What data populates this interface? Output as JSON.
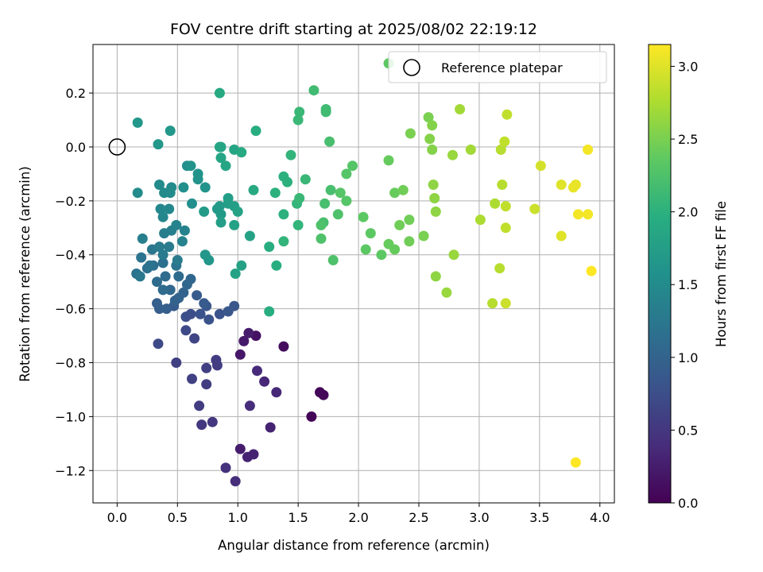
{
  "chart_data": {
    "type": "scatter",
    "title": "FOV centre drift starting at 2025/08/02 22:19:12",
    "xlabel": "Angular distance from reference (arcmin)",
    "ylabel": "Rotation from reference (arcmin)",
    "colorbar_label": "Hours from first FF file",
    "xlim": [
      -0.2,
      4.12
    ],
    "ylim": [
      -1.32,
      0.38
    ],
    "clim": [
      0.0,
      3.15
    ],
    "colormap": "viridis",
    "grid": true,
    "x_ticks": [
      "0.0",
      "0.5",
      "1.0",
      "1.5",
      "2.0",
      "2.5",
      "3.0",
      "3.5",
      "4.0"
    ],
    "y_ticks": [
      "0.2",
      "0.0",
      "−0.2",
      "−0.4",
      "−0.6",
      "−0.8",
      "−1.0",
      "−1.2"
    ],
    "colorbar_ticks": [
      "0.0",
      "0.5",
      "1.0",
      "1.5",
      "2.0",
      "2.5",
      "3.0"
    ],
    "legend": {
      "label": "Reference platepar",
      "location": "upper right"
    },
    "reference_point": {
      "x": 0.0,
      "y": 0.0
    },
    "points": [
      [
        1.68,
        -0.91,
        0.05
      ],
      [
        1.61,
        -1.0,
        0.04
      ],
      [
        1.71,
        -0.92,
        0.06
      ],
      [
        1.38,
        -0.74,
        0.1
      ],
      [
        1.15,
        -0.7,
        0.15
      ],
      [
        1.02,
        -0.77,
        0.2
      ],
      [
        1.05,
        -0.72,
        0.22
      ],
      [
        1.09,
        -0.69,
        0.25
      ],
      [
        1.02,
        -1.12,
        0.25
      ],
      [
        1.08,
        -1.15,
        0.3
      ],
      [
        1.13,
        -1.14,
        0.3
      ],
      [
        1.27,
        -1.04,
        0.3
      ],
      [
        1.32,
        -0.91,
        0.35
      ],
      [
        1.22,
        -0.87,
        0.35
      ],
      [
        1.16,
        -0.83,
        0.38
      ],
      [
        1.1,
        -0.96,
        0.4
      ],
      [
        0.98,
        -1.24,
        0.4
      ],
      [
        0.9,
        -1.19,
        0.45
      ],
      [
        0.79,
        -1.02,
        0.5
      ],
      [
        0.7,
        -1.03,
        0.5
      ],
      [
        0.68,
        -0.96,
        0.55
      ],
      [
        0.74,
        -0.88,
        0.55
      ],
      [
        0.83,
        -0.81,
        0.55
      ],
      [
        0.82,
        -0.79,
        0.55
      ],
      [
        0.74,
        -0.82,
        0.6
      ],
      [
        0.62,
        -0.86,
        0.6
      ],
      [
        0.49,
        -0.8,
        0.6
      ],
      [
        0.64,
        -0.71,
        0.65
      ],
      [
        0.57,
        -0.68,
        0.7
      ],
      [
        0.34,
        -0.73,
        0.7
      ],
      [
        0.57,
        -0.63,
        0.75
      ],
      [
        0.61,
        -0.62,
        0.75
      ],
      [
        0.69,
        -0.62,
        0.8
      ],
      [
        0.85,
        -0.62,
        0.8
      ],
      [
        0.76,
        -0.64,
        0.8
      ],
      [
        0.92,
        -0.61,
        0.85
      ],
      [
        0.97,
        -0.59,
        0.85
      ],
      [
        0.74,
        -0.59,
        0.85
      ],
      [
        0.66,
        -0.55,
        0.9
      ],
      [
        0.72,
        -0.58,
        0.9
      ],
      [
        0.47,
        -0.59,
        0.9
      ],
      [
        0.41,
        -0.6,
        0.95
      ],
      [
        0.35,
        -0.6,
        0.95
      ],
      [
        0.33,
        -0.58,
        0.95
      ],
      [
        0.48,
        -0.57,
        1.0
      ],
      [
        0.55,
        -0.54,
        1.0
      ],
      [
        0.51,
        -0.56,
        1.0
      ],
      [
        0.44,
        -0.53,
        1.05
      ],
      [
        0.58,
        -0.51,
        1.05
      ],
      [
        0.61,
        -0.49,
        1.05
      ],
      [
        0.51,
        -0.48,
        1.1
      ],
      [
        0.4,
        -0.48,
        1.1
      ],
      [
        0.33,
        -0.5,
        1.1
      ],
      [
        0.38,
        -0.53,
        1.1
      ],
      [
        0.25,
        -0.45,
        1.15
      ],
      [
        0.3,
        -0.44,
        1.15
      ],
      [
        0.38,
        -0.43,
        1.15
      ],
      [
        0.49,
        -0.44,
        1.2
      ],
      [
        0.27,
        -0.44,
        1.2
      ],
      [
        0.2,
        -0.41,
        1.2
      ],
      [
        0.16,
        -0.47,
        1.2
      ],
      [
        0.19,
        -0.48,
        1.25
      ],
      [
        0.29,
        -0.38,
        1.25
      ],
      [
        0.35,
        -0.37,
        1.3
      ],
      [
        0.43,
        -0.37,
        1.3
      ],
      [
        0.5,
        -0.42,
        1.3
      ],
      [
        0.38,
        -0.4,
        1.3
      ],
      [
        0.21,
        -0.34,
        1.35
      ],
      [
        0.39,
        -0.32,
        1.35
      ],
      [
        0.45,
        -0.31,
        1.35
      ],
      [
        0.54,
        -0.35,
        1.4
      ],
      [
        0.49,
        -0.29,
        1.4
      ],
      [
        0.56,
        -0.31,
        1.4
      ],
      [
        0.36,
        -0.23,
        1.45
      ],
      [
        0.43,
        -0.23,
        1.45
      ],
      [
        0.38,
        -0.26,
        1.45
      ],
      [
        0.39,
        -0.17,
        1.5
      ],
      [
        0.44,
        -0.17,
        1.5
      ],
      [
        0.35,
        -0.14,
        1.5
      ],
      [
        0.45,
        -0.15,
        1.5
      ],
      [
        0.17,
        -0.17,
        1.5
      ],
      [
        0.55,
        -0.15,
        1.55
      ],
      [
        0.62,
        -0.21,
        1.55
      ],
      [
        0.58,
        -0.07,
        1.55
      ],
      [
        0.67,
        -0.1,
        1.6
      ],
      [
        0.61,
        -0.07,
        1.6
      ],
      [
        0.67,
        -0.12,
        1.6
      ],
      [
        0.73,
        -0.15,
        1.6
      ],
      [
        0.34,
        0.01,
        1.65
      ],
      [
        0.17,
        0.09,
        1.65
      ],
      [
        0.44,
        0.06,
        1.65
      ],
      [
        0.73,
        -0.4,
        1.65
      ],
      [
        0.76,
        -0.42,
        1.65
      ],
      [
        0.72,
        -0.24,
        1.7
      ],
      [
        0.83,
        -0.23,
        1.7
      ],
      [
        0.85,
        -0.22,
        1.7
      ],
      [
        0.86,
        -0.25,
        1.7
      ],
      [
        0.92,
        -0.21,
        1.75
      ],
      [
        0.97,
        -0.22,
        1.75
      ],
      [
        0.92,
        -0.19,
        1.75
      ],
      [
        0.86,
        -0.28,
        1.75
      ],
      [
        0.97,
        -0.29,
        1.8
      ],
      [
        1.0,
        -0.24,
        1.8
      ],
      [
        0.98,
        -0.47,
        1.8
      ],
      [
        1.03,
        -0.44,
        1.8
      ],
      [
        1.1,
        -0.33,
        1.8
      ],
      [
        0.85,
        0.0,
        1.85
      ],
      [
        0.86,
        0.0,
        1.85
      ],
      [
        0.86,
        -0.04,
        1.85
      ],
      [
        0.9,
        -0.07,
        1.85
      ],
      [
        0.97,
        -0.01,
        1.85
      ],
      [
        1.03,
        -0.02,
        1.9
      ],
      [
        0.85,
        0.2,
        1.9
      ],
      [
        1.13,
        -0.16,
        1.9
      ],
      [
        1.15,
        0.06,
        1.95
      ],
      [
        1.26,
        -0.37,
        1.95
      ],
      [
        1.32,
        -0.44,
        1.95
      ],
      [
        1.26,
        -0.61,
        1.95
      ],
      [
        1.31,
        -0.17,
        2.0
      ],
      [
        1.38,
        -0.25,
        2.0
      ],
      [
        1.38,
        -0.11,
        2.0
      ],
      [
        1.41,
        -0.13,
        2.0
      ],
      [
        1.44,
        -0.03,
        2.05
      ],
      [
        1.38,
        -0.35,
        2.05
      ],
      [
        1.5,
        -0.29,
        2.05
      ],
      [
        1.49,
        -0.21,
        2.05
      ],
      [
        1.51,
        -0.19,
        2.1
      ],
      [
        1.56,
        -0.12,
        2.1
      ],
      [
        1.5,
        0.1,
        2.1
      ],
      [
        1.51,
        0.13,
        2.1
      ],
      [
        1.63,
        0.21,
        2.15
      ],
      [
        1.73,
        0.14,
        2.15
      ],
      [
        1.73,
        0.13,
        2.15
      ],
      [
        1.76,
        0.02,
        2.2
      ],
      [
        1.77,
        -0.16,
        2.2
      ],
      [
        1.72,
        -0.21,
        2.2
      ],
      [
        1.71,
        -0.28,
        2.2
      ],
      [
        1.69,
        -0.29,
        2.25
      ],
      [
        1.69,
        -0.34,
        2.25
      ],
      [
        1.79,
        -0.42,
        2.25
      ],
      [
        1.83,
        -0.25,
        2.25
      ],
      [
        1.85,
        -0.17,
        2.3
      ],
      [
        1.9,
        -0.2,
        2.3
      ],
      [
        1.9,
        -0.1,
        2.3
      ],
      [
        1.95,
        -0.07,
        2.3
      ],
      [
        2.04,
        -0.26,
        2.35
      ],
      [
        2.1,
        -0.32,
        2.35
      ],
      [
        2.06,
        -0.38,
        2.35
      ],
      [
        2.19,
        -0.4,
        2.35
      ],
      [
        2.25,
        -0.36,
        2.4
      ],
      [
        2.3,
        -0.38,
        2.4
      ],
      [
        2.25,
        -0.05,
        2.4
      ],
      [
        2.3,
        -0.17,
        2.4
      ],
      [
        2.37,
        -0.16,
        2.45
      ],
      [
        2.34,
        -0.29,
        2.45
      ],
      [
        2.42,
        -0.27,
        2.45
      ],
      [
        2.42,
        -0.35,
        2.45
      ],
      [
        2.43,
        0.05,
        2.5
      ],
      [
        2.54,
        -0.33,
        2.5
      ],
      [
        2.58,
        0.11,
        2.5
      ],
      [
        2.61,
        0.08,
        2.55
      ],
      [
        2.59,
        0.03,
        2.55
      ],
      [
        2.61,
        -0.01,
        2.55
      ],
      [
        2.62,
        -0.14,
        2.6
      ],
      [
        2.63,
        -0.19,
        2.6
      ],
      [
        2.64,
        -0.24,
        2.6
      ],
      [
        2.64,
        -0.48,
        2.6
      ],
      [
        2.73,
        -0.54,
        2.65
      ],
      [
        2.78,
        -0.03,
        2.65
      ],
      [
        2.79,
        -0.4,
        2.65
      ],
      [
        2.84,
        0.14,
        2.7
      ],
      [
        2.93,
        -0.01,
        2.7
      ],
      [
        3.01,
        -0.27,
        2.75
      ],
      [
        3.13,
        -0.21,
        2.75
      ],
      [
        3.17,
        -0.45,
        2.8
      ],
      [
        3.11,
        -0.58,
        2.8
      ],
      [
        3.18,
        -0.01,
        2.8
      ],
      [
        3.19,
        -0.14,
        2.8
      ],
      [
        3.21,
        0.02,
        2.85
      ],
      [
        3.22,
        -0.22,
        2.85
      ],
      [
        3.22,
        -0.3,
        2.85
      ],
      [
        3.23,
        0.12,
        2.85
      ],
      [
        3.22,
        -0.58,
        2.9
      ],
      [
        3.46,
        -0.23,
        2.9
      ],
      [
        3.51,
        -0.07,
        2.95
      ],
      [
        3.68,
        -0.14,
        3.0
      ],
      [
        3.68,
        -0.33,
        3.0
      ],
      [
        3.78,
        -0.15,
        3.05
      ],
      [
        3.8,
        -0.14,
        3.05
      ],
      [
        3.82,
        -0.25,
        3.1
      ],
      [
        3.9,
        -0.25,
        3.1
      ],
      [
        3.9,
        -0.01,
        3.1
      ],
      [
        3.93,
        -0.46,
        3.15
      ],
      [
        3.8,
        -1.17,
        3.15
      ],
      [
        2.25,
        0.31,
        2.35
      ]
    ]
  }
}
